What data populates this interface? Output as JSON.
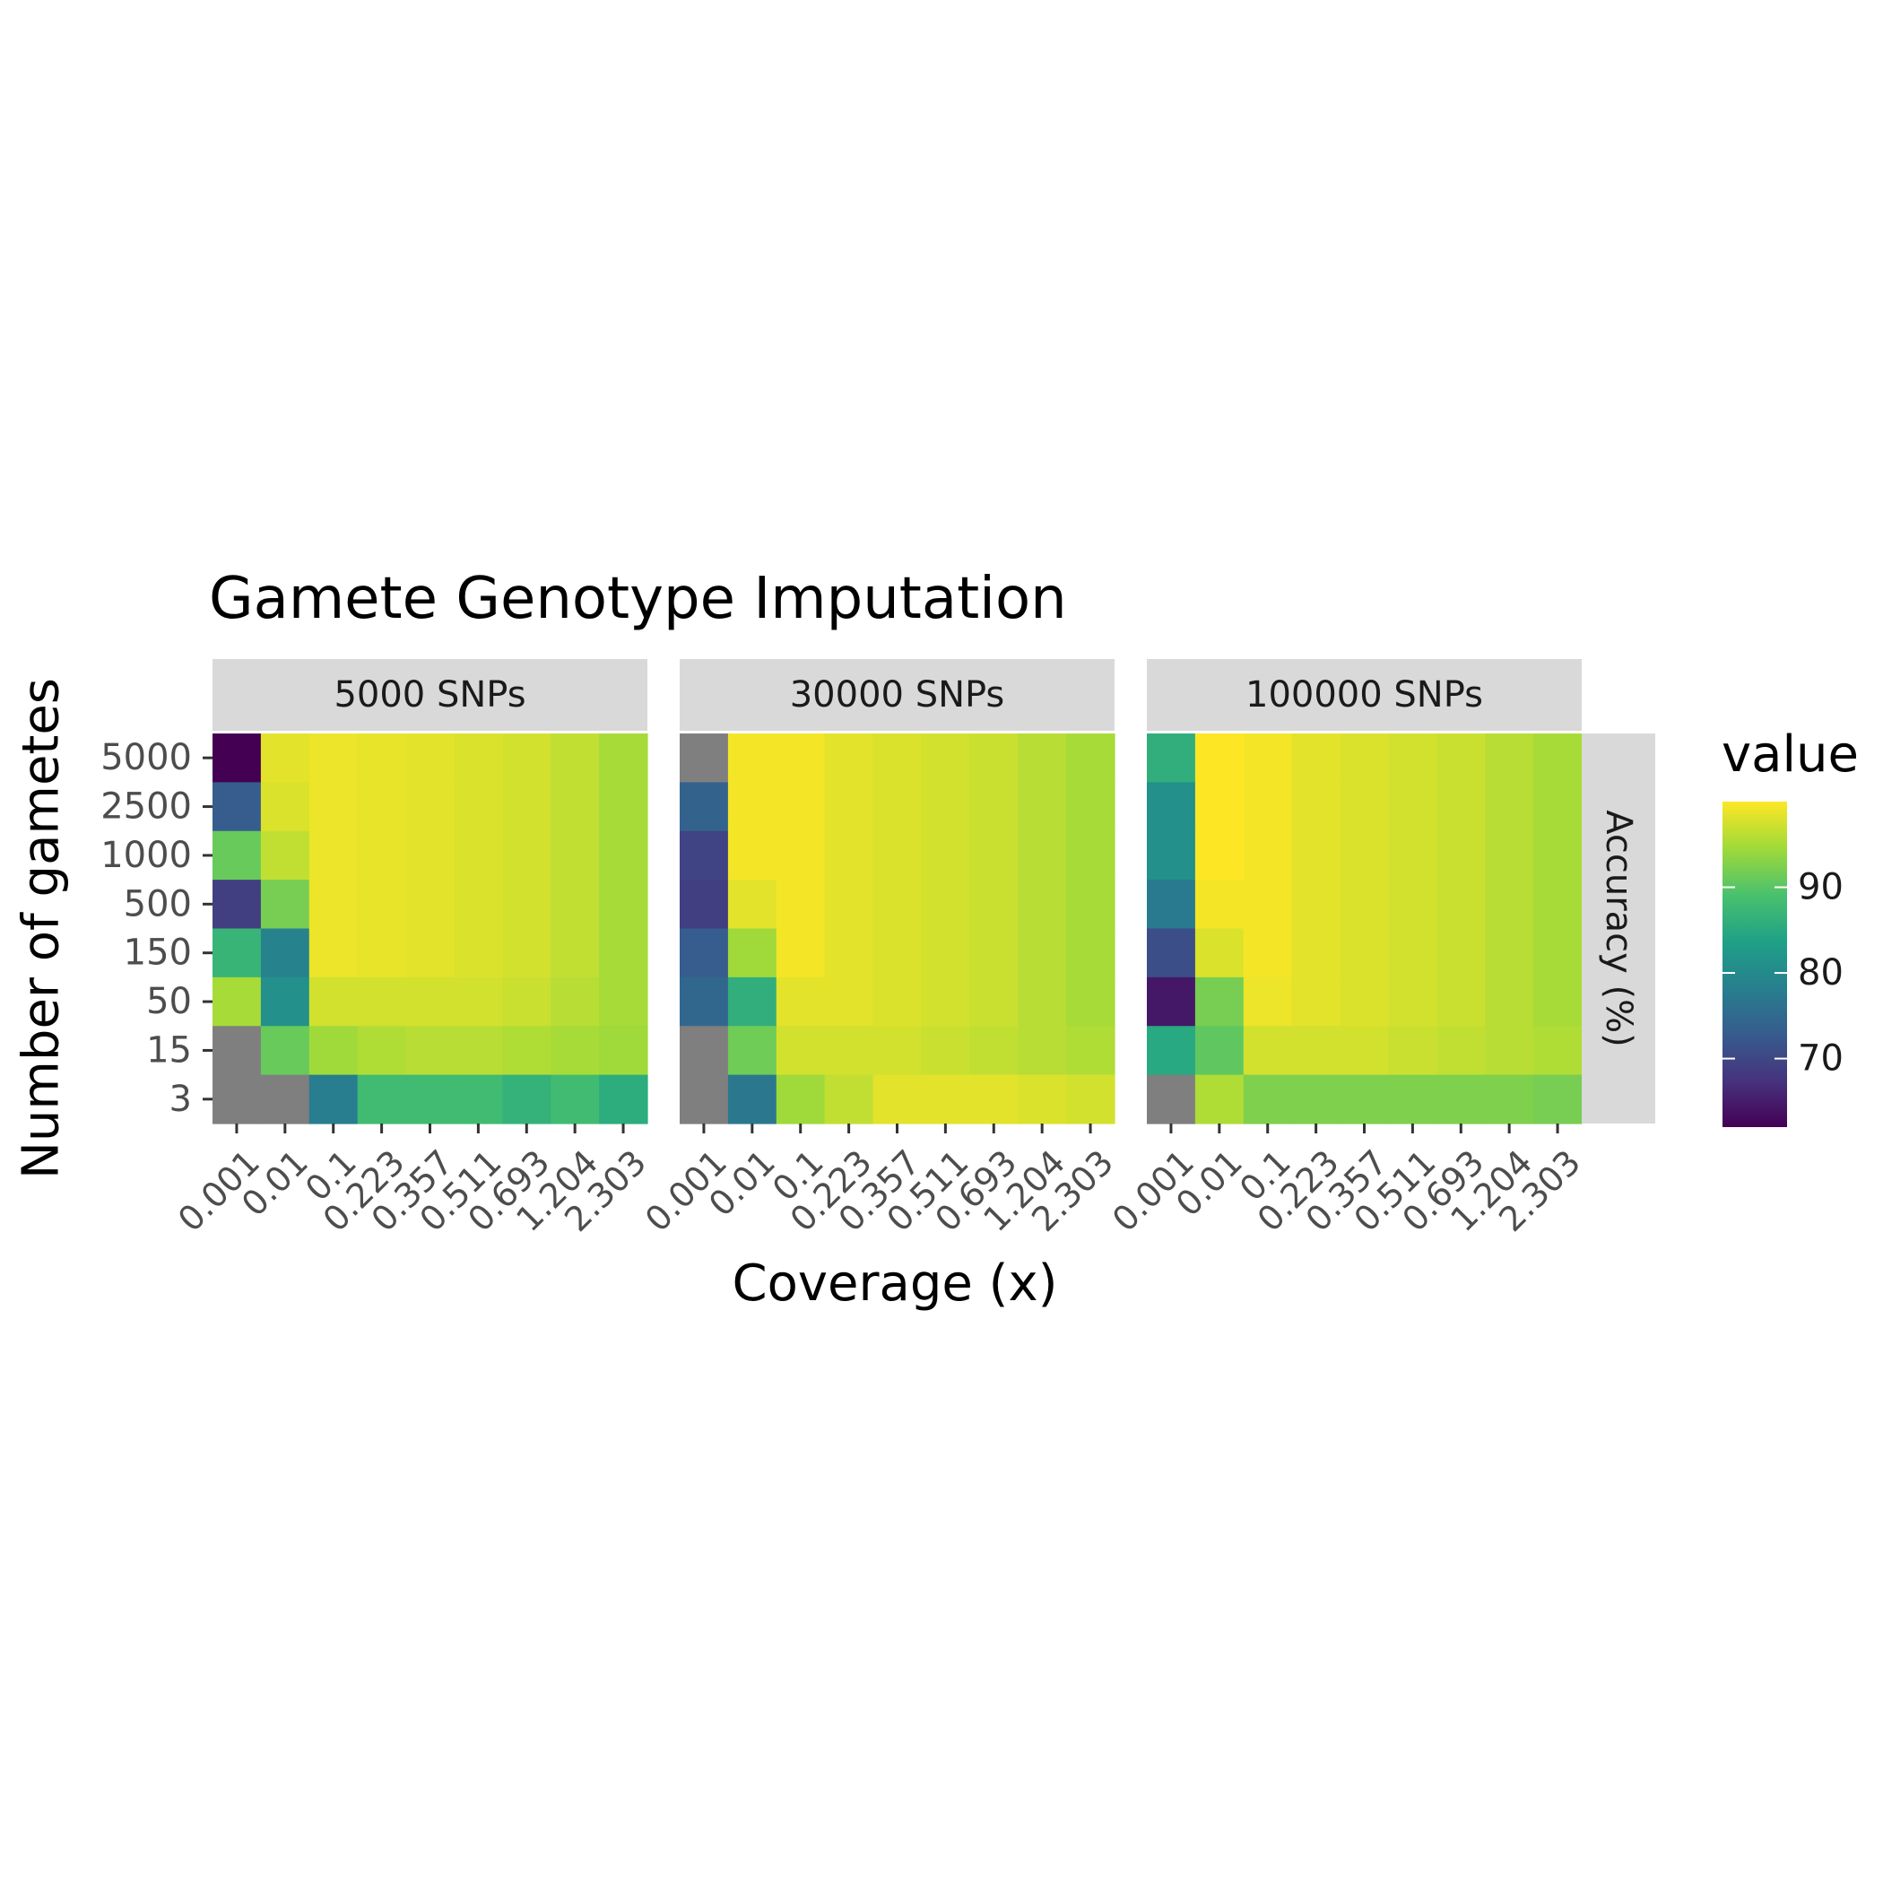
{
  "chart_data": {
    "type": "heatmap",
    "title": "Gamete Genotype Imputation",
    "xlabel": "Coverage (x)",
    "ylabel": "Number of gametes",
    "row_strip_label": "Accuracy (%)",
    "x_categories": [
      "0.001",
      "0.01",
      "0.1",
      "0.223",
      "0.357",
      "0.511",
      "0.693",
      "1.204",
      "2.303"
    ],
    "y_categories": [
      "5000",
      "2500",
      "1000",
      "500",
      "150",
      "50",
      "15",
      "3"
    ],
    "legend": {
      "title": "value",
      "ticks": [
        70,
        80,
        90
      ],
      "range": [
        62,
        100
      ],
      "placement": "right",
      "colors": [
        "#440154",
        "#46337e",
        "#365c8d",
        "#277f8e",
        "#1fa187",
        "#4ac16d",
        "#a0da39",
        "#fde725"
      ],
      "na_color": "#7f7f7f"
    },
    "panels": [
      {
        "label": "5000 SNPs",
        "values": [
          [
            62.0,
            98.5,
            99.0,
            98.8,
            98.5,
            98.0,
            97.5,
            96.5,
            95.0
          ],
          [
            73.0,
            98.0,
            99.0,
            98.8,
            98.5,
            98.0,
            97.5,
            96.5,
            95.0
          ],
          [
            91.0,
            96.5,
            99.0,
            98.8,
            98.5,
            98.0,
            97.5,
            96.5,
            95.0
          ],
          [
            69.0,
            92.0,
            99.0,
            98.8,
            98.5,
            98.0,
            97.5,
            96.5,
            95.0
          ],
          [
            87.0,
            79.0,
            99.0,
            98.8,
            98.5,
            98.0,
            97.5,
            96.5,
            95.0
          ],
          [
            95.0,
            81.0,
            97.5,
            97.5,
            97.5,
            97.5,
            97.0,
            96.0,
            95.0
          ],
          [
            null,
            91.0,
            94.5,
            95.5,
            96.0,
            96.0,
            95.5,
            95.0,
            94.5
          ],
          [
            null,
            null,
            78.0,
            88.0,
            88.0,
            88.0,
            86.5,
            88.0,
            85.5
          ]
        ]
      },
      {
        "label": "30000 SNPs",
        "values": [
          [
            null,
            99.5,
            99.5,
            98.5,
            98.0,
            97.5,
            97.0,
            96.0,
            95.0
          ],
          [
            74.0,
            99.5,
            99.5,
            98.5,
            98.0,
            97.5,
            97.0,
            96.0,
            95.0
          ],
          [
            69.5,
            99.5,
            99.5,
            98.5,
            98.0,
            97.5,
            97.0,
            96.0,
            95.0
          ],
          [
            69.0,
            98.5,
            99.5,
            98.5,
            98.0,
            97.5,
            97.0,
            96.0,
            95.0
          ],
          [
            73.0,
            94.5,
            99.5,
            98.5,
            98.0,
            97.5,
            97.0,
            96.0,
            95.0
          ],
          [
            74.5,
            86.0,
            98.5,
            98.5,
            98.0,
            97.5,
            97.0,
            96.0,
            95.0
          ],
          [
            null,
            91.5,
            97.5,
            97.5,
            97.5,
            97.0,
            96.5,
            96.0,
            95.5
          ],
          [
            null,
            77.0,
            94.5,
            96.5,
            98.5,
            98.5,
            98.5,
            98.0,
            97.5
          ]
        ]
      },
      {
        "label": "100000 SNPs",
        "values": [
          [
            86.0,
            100.0,
            99.5,
            98.5,
            98.0,
            97.5,
            97.0,
            96.0,
            95.0
          ],
          [
            81.0,
            100.0,
            99.5,
            98.5,
            98.0,
            97.5,
            97.0,
            96.0,
            95.0
          ],
          [
            81.0,
            100.0,
            99.5,
            98.5,
            98.0,
            97.5,
            97.0,
            96.0,
            95.0
          ],
          [
            77.5,
            99.5,
            99.5,
            98.5,
            98.0,
            97.5,
            97.0,
            96.0,
            95.0
          ],
          [
            71.0,
            98.0,
            99.5,
            98.5,
            98.0,
            97.5,
            97.0,
            96.0,
            95.0
          ],
          [
            64.5,
            92.0,
            99.0,
            98.5,
            98.0,
            97.5,
            97.0,
            96.0,
            95.0
          ],
          [
            85.0,
            90.5,
            97.5,
            97.5,
            97.5,
            97.0,
            96.5,
            96.0,
            95.5
          ],
          [
            null,
            95.5,
            92.5,
            92.5,
            92.5,
            92.5,
            92.5,
            92.5,
            92.0
          ]
        ]
      }
    ]
  }
}
